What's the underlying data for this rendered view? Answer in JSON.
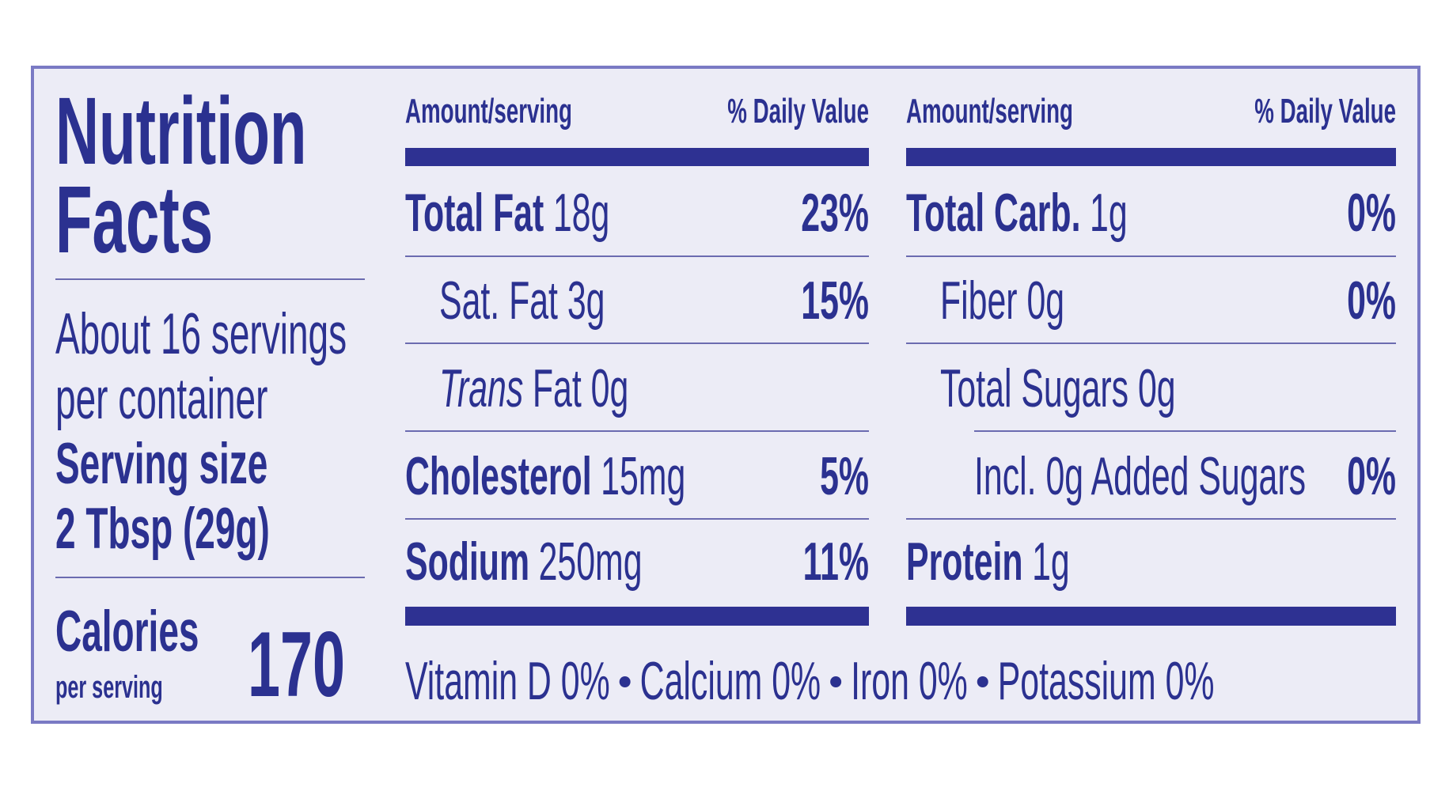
{
  "title_lines": [
    "Nutrition",
    "Facts"
  ],
  "servings_lines": [
    "About 16 servings",
    "per container"
  ],
  "serving_size": {
    "label": "Serving size",
    "value": "2 Tbsp (29g)"
  },
  "calories": {
    "label": "Calories",
    "sublabel": "per serving",
    "value": "170"
  },
  "columns": [
    {
      "header": {
        "amount": "Amount/serving",
        "daily_value": "% Daily Value"
      },
      "rows": [
        {
          "name": "Total Fat",
          "amount": "18g",
          "daily_value": "23%",
          "bold": true,
          "indent": 0
        },
        {
          "name": "Sat. Fat 3g",
          "daily_value": "15%",
          "indent": 1
        },
        {
          "name_italic": "Trans",
          "name": "Fat 0g",
          "indent": 1
        },
        {
          "name": "Cholesterol",
          "amount": "15mg",
          "daily_value": "5%",
          "bold": true,
          "indent": 0
        },
        {
          "name": "Sodium",
          "amount": "250mg",
          "daily_value": "11%",
          "bold": true,
          "indent": 0
        }
      ]
    },
    {
      "header": {
        "amount": "Amount/serving",
        "daily_value": "% Daily Value"
      },
      "rows": [
        {
          "name": "Total Carb.",
          "amount": "1g",
          "daily_value": "0%",
          "bold": true,
          "indent": 0
        },
        {
          "name": "Fiber 0g",
          "daily_value": "0%",
          "indent": 1
        },
        {
          "name": "Total Sugars 0g",
          "indent": 1
        },
        {
          "name": "Incl. 0g Added Sugars",
          "daily_value": "0%",
          "indent": 2
        },
        {
          "name": "Protein",
          "amount": "1g",
          "bold": true,
          "indent": 0
        }
      ]
    }
  ],
  "vitamins": [
    "Vitamin D 0%",
    "Calcium 0%",
    "Iron 0%",
    "Potassium 0%"
  ]
}
